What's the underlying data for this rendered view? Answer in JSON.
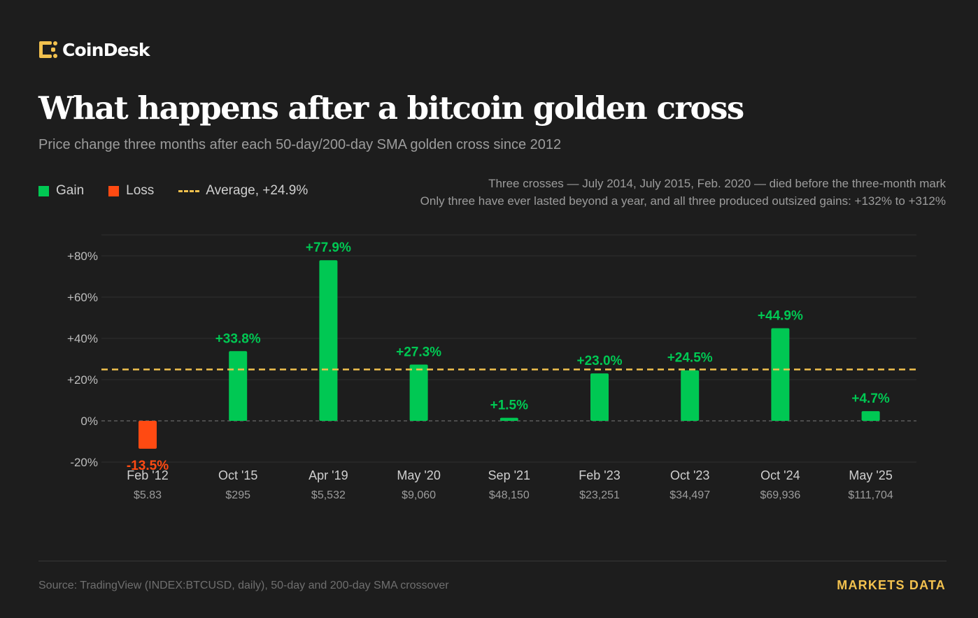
{
  "brand": {
    "name": "CoinDesk",
    "logo_color": "#f2c14e"
  },
  "header": {
    "title": "What happens after a bitcoin golden cross",
    "subtitle": "Price change three months after each 50-day/200-day SMA golden cross since 2012"
  },
  "legend": {
    "gain_label": "Gain",
    "loss_label": "Loss",
    "average_label": "Average, +24.9%"
  },
  "notes": {
    "line1": "Three crosses — July 2014, July 2015, Feb. 2020 — died before the three-month mark",
    "line2": "Only three have ever lasted beyond a year, and all three produced outsized gains: +132% to +312%"
  },
  "colors": {
    "gain": "#00c853",
    "loss": "#ff4a12",
    "average": "#f2c14e",
    "background": "#1d1d1d"
  },
  "chart_data": {
    "type": "bar",
    "categories": [
      "Feb '12",
      "Oct '15",
      "Apr '19",
      "May '20",
      "Sep '21",
      "Feb '23",
      "Oct '23",
      "Oct '24",
      "May '25"
    ],
    "prices": [
      "$5.83",
      "$295",
      "$5,532",
      "$9,060",
      "$48,150",
      "$23,251",
      "$34,497",
      "$69,936",
      "$111,704"
    ],
    "values": [
      -13.5,
      33.8,
      77.9,
      27.3,
      1.5,
      23.0,
      24.5,
      44.9,
      4.7
    ],
    "value_labels": [
      "-13.5%",
      "+33.8%",
      "+77.9%",
      "+27.3%",
      "+1.5%",
      "+23.0%",
      "+24.5%",
      "+44.9%",
      "+4.7%"
    ],
    "average": 24.9,
    "y_ticks": [
      80,
      60,
      40,
      20,
      0,
      -20
    ],
    "y_tick_labels": [
      "+80%",
      "+60%",
      "+40%",
      "+20%",
      "0%",
      "-20%"
    ],
    "ylim": [
      -20,
      80
    ],
    "grid": true
  },
  "footer": {
    "source": "Source: TradingView (INDEX:BTCUSD, daily), 50-day and 200-day SMA crossover",
    "tag": "MARKETS DATA"
  }
}
